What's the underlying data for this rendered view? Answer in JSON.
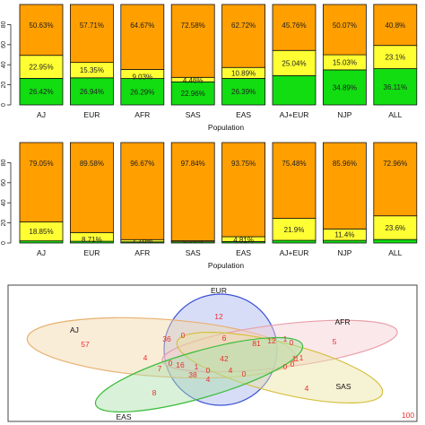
{
  "colors": {
    "green": "#11dd11",
    "yellow": "#ffff33",
    "orange": "#ff9f00",
    "vnum": "#e83030"
  },
  "chart_data": [
    {
      "type": "bar",
      "stacked": true,
      "xlabel": "Population",
      "ylabel": "",
      "ylim": [
        0,
        100
      ],
      "yticks": [
        "0",
        "20",
        "40",
        "60",
        "80"
      ],
      "categories": [
        "AJ",
        "EUR",
        "AFR",
        "SAS",
        "EAS",
        "AJ+EUR",
        "NJP",
        "ALL"
      ],
      "series": [
        {
          "color": "green",
          "values": [
            26.42,
            26.94,
            26.29,
            22.96,
            26.39,
            29.19,
            34.89,
            36.11
          ],
          "labels": [
            "26.42%",
            "26.94%",
            "26.29%",
            "22.96%",
            "26.39%",
            "",
            "34.89%",
            "36.11%"
          ]
        },
        {
          "color": "yellow",
          "values": [
            22.95,
            15.35,
            9.03,
            4.46,
            10.89,
            25.04,
            15.03,
            23.1
          ],
          "labels": [
            "22.95%",
            "15.35%",
            "9.03%",
            "4.46%",
            "10.89%",
            "25.04%",
            "15.03%",
            "23.1%"
          ]
        },
        {
          "color": "orange",
          "values": [
            50.63,
            57.71,
            64.67,
            72.58,
            62.72,
            45.76,
            50.07,
            40.8
          ],
          "labels": [
            "50.63%",
            "57.71%",
            "64.67%",
            "72.58%",
            "62.72%",
            "45.76%",
            "50.07%",
            "40.8%"
          ]
        }
      ]
    },
    {
      "type": "bar",
      "stacked": true,
      "xlabel": "Population",
      "ylabel": "",
      "ylim": [
        0,
        100
      ],
      "yticks": [
        "0",
        "20",
        "40",
        "60",
        "80"
      ],
      "categories": [
        "AJ",
        "EUR",
        "AFR",
        "SAS",
        "EAS",
        "AJ+EUR",
        "NJP",
        "ALL"
      ],
      "series": [
        {
          "color": "green",
          "values": [
            2.1,
            1.7,
            1.07,
            1.2,
            1.44,
            2.62,
            2.6,
            3.44
          ],
          "labels": [
            "",
            "",
            "",
            "",
            "",
            "",
            "",
            ""
          ]
        },
        {
          "color": "yellow",
          "values": [
            18.85,
            8.71,
            2.26,
            0.96,
            4.81,
            21.9,
            11.4,
            23.6
          ],
          "labels": [
            "18.85%",
            "8.71%",
            "2.26%",
            "0.96%",
            "4.81%",
            "21.9%",
            "11.4%",
            "23.6%"
          ]
        },
        {
          "color": "orange",
          "values": [
            79.05,
            89.58,
            96.67,
            97.84,
            93.75,
            75.48,
            85.96,
            72.96
          ],
          "labels": [
            "79.05%",
            "89.58%",
            "96.67%",
            "97.84%",
            "93.75%",
            "75.48%",
            "85.96%",
            "72.96%"
          ]
        }
      ]
    }
  ],
  "venn": {
    "sets": [
      {
        "name": "EUR",
        "color": "#3a50d6",
        "fill": "#a8b4ee"
      },
      {
        "name": "AJ",
        "color": "#e8b070",
        "fill": "#f5d6a8"
      },
      {
        "name": "AFR",
        "color": "#e8a0a8",
        "fill": "#f3cdd2"
      },
      {
        "name": "SAS",
        "color": "#d6c040",
        "fill": "#ece2a0"
      },
      {
        "name": "EAS",
        "color": "#3cbb3c",
        "fill": "#a8e0a8"
      }
    ],
    "numbers": [
      "12",
      "57",
      "5",
      "100",
      "36",
      "0",
      "6",
      "81",
      "12",
      "1",
      "0",
      "1",
      "4",
      "42",
      "7",
      "0",
      "16",
      "1",
      "0",
      "4",
      "0",
      "38",
      "4",
      "1",
      "0",
      "0",
      "1",
      "4",
      "8"
    ]
  }
}
